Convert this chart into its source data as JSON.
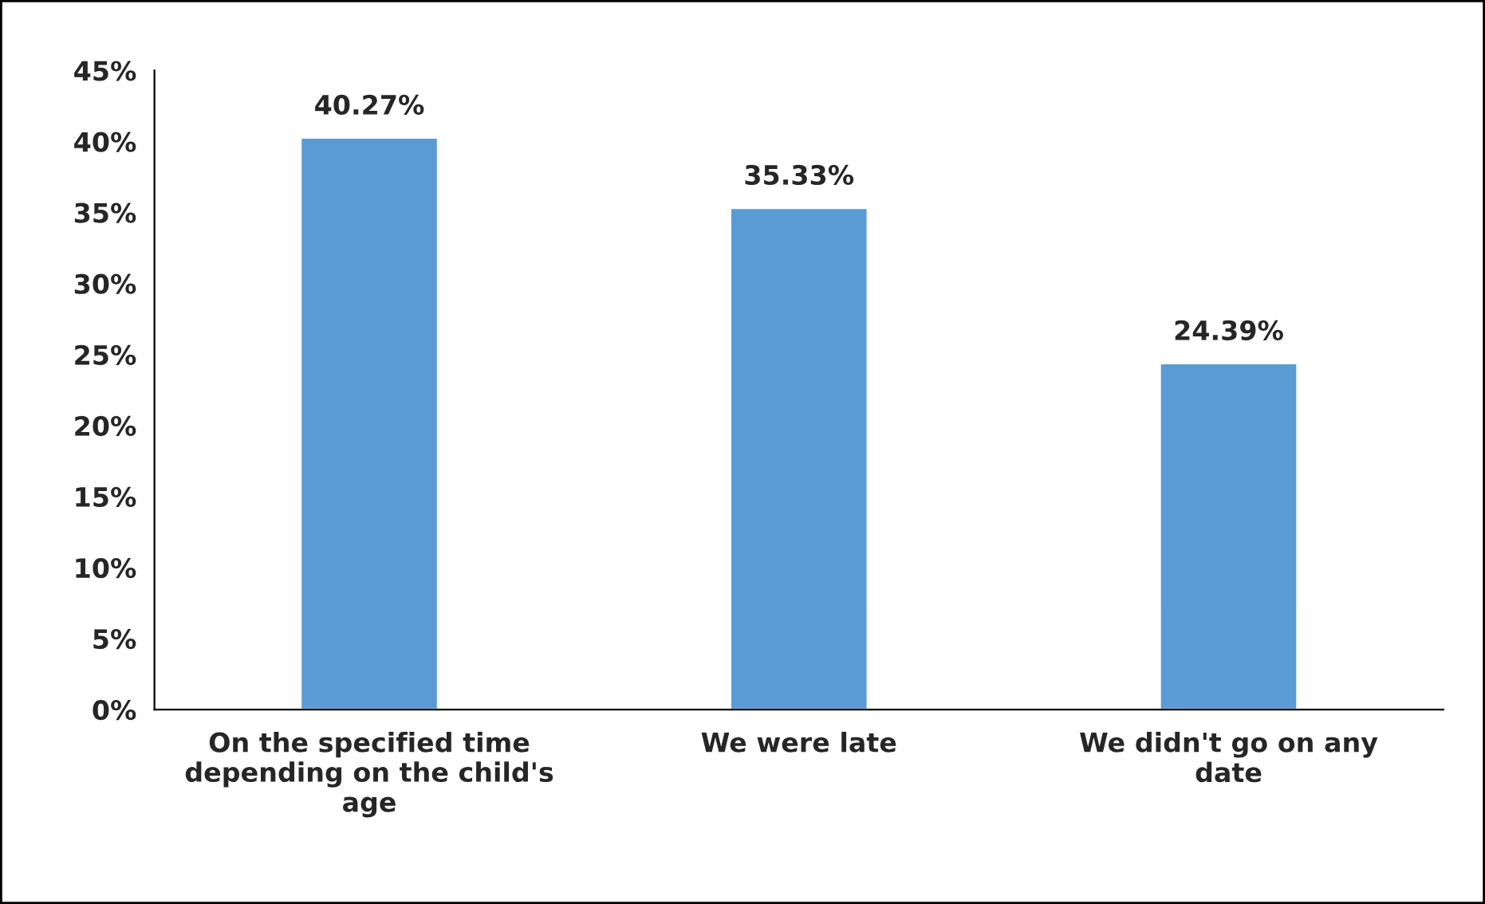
{
  "chart_data": {
    "type": "bar",
    "categories": [
      "On the specified time\ndepending on the child's\nage",
      "We were late",
      "We didn't go on any\ndate"
    ],
    "values": [
      40.27,
      35.33,
      24.39
    ],
    "value_labels": [
      "40.27%",
      "35.33%",
      "24.39%"
    ],
    "color": "#5b9bd5",
    "ylim": [
      0,
      45
    ],
    "yticks": [
      {
        "value": 0,
        "label": "0%"
      },
      {
        "value": 5,
        "label": "5%"
      },
      {
        "value": 10,
        "label": "10%"
      },
      {
        "value": 15,
        "label": "15%"
      },
      {
        "value": 20,
        "label": "20%"
      },
      {
        "value": 25,
        "label": "25%"
      },
      {
        "value": 30,
        "label": "30%"
      },
      {
        "value": 35,
        "label": "35%"
      },
      {
        "value": 40,
        "label": "40%"
      },
      {
        "value": 45,
        "label": "45%"
      }
    ],
    "grid": false,
    "legend": false
  }
}
